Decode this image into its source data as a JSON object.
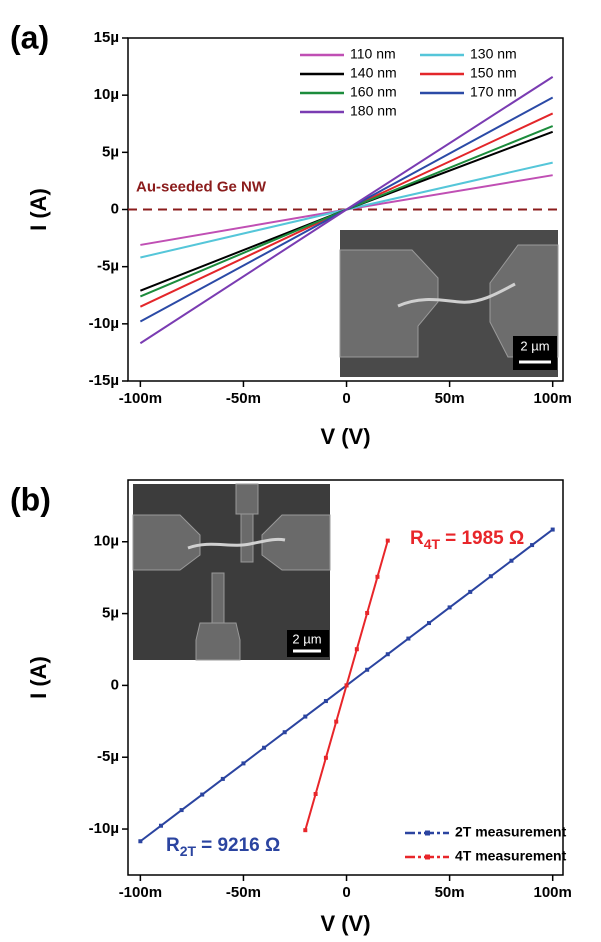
{
  "chart_data": [
    {
      "type": "line",
      "panel_label": "(a)",
      "x_label": "V (V)",
      "y_label": "I (A)",
      "xlim": [
        -0.106,
        0.105
      ],
      "xticks": [
        {
          "value": -0.1,
          "label": "-100m"
        },
        {
          "value": -0.05,
          "label": "-50m"
        },
        0,
        {
          "value": 0.05,
          "label": "50m"
        },
        {
          "value": 0.1,
          "label": "100m"
        }
      ],
      "ylim": [
        -1.5e-05,
        1.5e-05
      ],
      "yticks": [
        {
          "value": -1.5e-05,
          "label": "-15µ"
        },
        {
          "value": -1e-05,
          "label": "-10µ"
        },
        {
          "value": -5e-06,
          "label": "-5µ"
        },
        0,
        {
          "value": 5e-06,
          "label": "5µ"
        },
        {
          "value": 1e-05,
          "label": "10µ"
        },
        {
          "value": 1.5e-05,
          "label": "15µ"
        }
      ],
      "legend": "upper right",
      "series": [
        {
          "name": "110 nm",
          "color": "#c04fb4",
          "x": [
            -0.1,
            0,
            0.1
          ],
          "values": [
            -3.1e-06,
            0,
            3e-06
          ]
        },
        {
          "name": "130 nm",
          "color": "#55c6d9",
          "x": [
            -0.1,
            0,
            0.1
          ],
          "values": [
            -4.2e-06,
            0,
            4.1e-06
          ]
        },
        {
          "name": "140 nm",
          "color": "#000000",
          "x": [
            -0.1,
            0,
            0.1
          ],
          "values": [
            -7.1e-06,
            0,
            6.8e-06
          ]
        },
        {
          "name": "150 nm",
          "color": "#e3262a",
          "x": [
            -0.1,
            0,
            0.1
          ],
          "values": [
            -8.5e-06,
            0,
            8.4e-06
          ]
        },
        {
          "name": "160 nm",
          "color": "#1c8c3c",
          "x": [
            -0.1,
            0,
            0.1
          ],
          "values": [
            -7.6e-06,
            0,
            7.3e-06
          ]
        },
        {
          "name": "170 nm",
          "color": "#2b4aa6",
          "x": [
            -0.1,
            0,
            0.1
          ],
          "values": [
            -9.8e-06,
            0,
            9.8e-06
          ]
        },
        {
          "name": "180 nm",
          "color": "#7a3cb2",
          "x": [
            -0.1,
            0,
            0.1
          ],
          "values": [
            -1.17e-05,
            0,
            1.16e-05
          ]
        }
      ],
      "reference_line": {
        "label": "Au-seeded Ge NW",
        "value": 0,
        "color": "#8b1c1c"
      },
      "inset": {
        "scale_bar": "2 µm"
      }
    },
    {
      "type": "line",
      "panel_label": "(b)",
      "x_label": "V (V)",
      "y_label": "I (A)",
      "xlim": [
        -0.106,
        0.105
      ],
      "xticks": [
        {
          "value": -0.1,
          "label": "-100m"
        },
        {
          "value": -0.05,
          "label": "-50m"
        },
        0,
        {
          "value": 0.05,
          "label": "50m"
        },
        {
          "value": 0.1,
          "label": "100m"
        }
      ],
      "ylim": [
        -1.32e-05,
        1.43e-05
      ],
      "yticks": [
        {
          "value": -1e-05,
          "label": "-10µ"
        },
        {
          "value": -5e-06,
          "label": "-5µ"
        },
        0,
        {
          "value": 5e-06,
          "label": "5µ"
        },
        {
          "value": 1e-05,
          "label": "10µ"
        }
      ],
      "legend": "lower right",
      "series": [
        {
          "name": "2T measurement",
          "color": "#2b44a0",
          "markers": true,
          "x": [
            -0.1,
            -0.09,
            -0.08,
            -0.07,
            -0.06,
            -0.05,
            -0.04,
            -0.03,
            -0.02,
            -0.01,
            0,
            0.01,
            0.02,
            0.03,
            0.04,
            0.05,
            0.06,
            0.07,
            0.08,
            0.09,
            0.1
          ],
          "values": [
            -1.085e-05,
            -9.77e-06,
            -8.68e-06,
            -7.6e-06,
            -6.51e-06,
            -5.43e-06,
            -4.34e-06,
            -3.26e-06,
            -2.17e-06,
            -1.09e-06,
            0,
            1.09e-06,
            2.17e-06,
            3.26e-06,
            4.34e-06,
            5.43e-06,
            6.51e-06,
            7.6e-06,
            8.68e-06,
            9.77e-06,
            1.085e-05
          ]
        },
        {
          "name": "4T measurement",
          "color": "#e8262a",
          "markers": true,
          "x": [
            -0.02,
            -0.015,
            -0.01,
            -0.005,
            0,
            0.005,
            0.01,
            0.015,
            0.02
          ],
          "values": [
            -1.008e-05,
            -7.56e-06,
            -5.04e-06,
            -2.52e-06,
            0,
            2.52e-06,
            5.04e-06,
            7.56e-06,
            1.008e-05
          ]
        }
      ],
      "annotations": [
        {
          "symbol": "R",
          "subscript": "4T",
          "text": "= 1985 Ω",
          "color": "#e8262a"
        },
        {
          "symbol": "R",
          "subscript": "2T",
          "text": "= 9216 Ω",
          "color": "#2b44a0"
        }
      ],
      "inset": {
        "scale_bar": "2 µm"
      }
    }
  ]
}
